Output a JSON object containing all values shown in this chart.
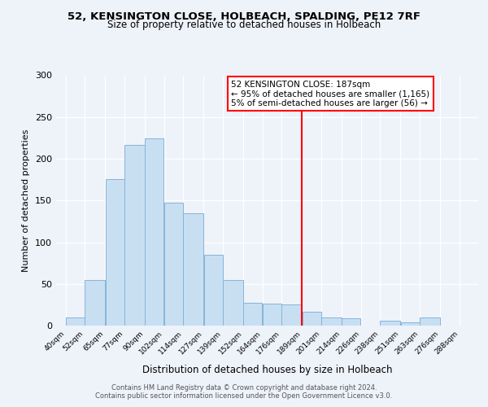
{
  "title": "52, KENSINGTON CLOSE, HOLBEACH, SPALDING, PE12 7RF",
  "subtitle": "Size of property relative to detached houses in Holbeach",
  "xlabel": "Distribution of detached houses by size in Holbeach",
  "ylabel": "Number of detached properties",
  "bar_left_edges": [
    40,
    52,
    65,
    77,
    90,
    102,
    114,
    127,
    139,
    152,
    164,
    176,
    189,
    201,
    214,
    226,
    238,
    251,
    263,
    276
  ],
  "bar_widths": [
    12,
    13,
    12,
    13,
    12,
    12,
    13,
    12,
    13,
    12,
    12,
    13,
    12,
    13,
    12,
    12,
    13,
    12,
    13,
    12
  ],
  "bar_heights": [
    10,
    55,
    176,
    217,
    224,
    147,
    135,
    85,
    55,
    27,
    26,
    25,
    17,
    10,
    9,
    0,
    6,
    4,
    10,
    0
  ],
  "tick_labels": [
    "40sqm",
    "52sqm",
    "65sqm",
    "77sqm",
    "90sqm",
    "102sqm",
    "114sqm",
    "127sqm",
    "139sqm",
    "152sqm",
    "164sqm",
    "176sqm",
    "189sqm",
    "201sqm",
    "214sqm",
    "226sqm",
    "238sqm",
    "251sqm",
    "263sqm",
    "276sqm",
    "288sqm"
  ],
  "tick_positions": [
    40,
    52,
    65,
    77,
    90,
    102,
    114,
    127,
    139,
    152,
    164,
    176,
    189,
    201,
    214,
    226,
    238,
    251,
    263,
    276,
    288
  ],
  "bar_color": "#c8dff2",
  "bar_edge_color": "#85b5d9",
  "ylim": [
    0,
    300
  ],
  "yticks": [
    0,
    50,
    100,
    150,
    200,
    250,
    300
  ],
  "xlim_left": 34,
  "xlim_right": 300,
  "vline_x": 189,
  "vline_color": "red",
  "annotation_title": "52 KENSINGTON CLOSE: 187sqm",
  "annotation_line1": "← 95% of detached houses are smaller (1,165)",
  "annotation_line2": "5% of semi-detached houses are larger (56) →",
  "footer_line1": "Contains HM Land Registry data © Crown copyright and database right 2024.",
  "footer_line2": "Contains public sector information licensed under the Open Government Licence v3.0.",
  "bg_color": "#eef2f9",
  "plot_bg_color": "#eef2f9"
}
